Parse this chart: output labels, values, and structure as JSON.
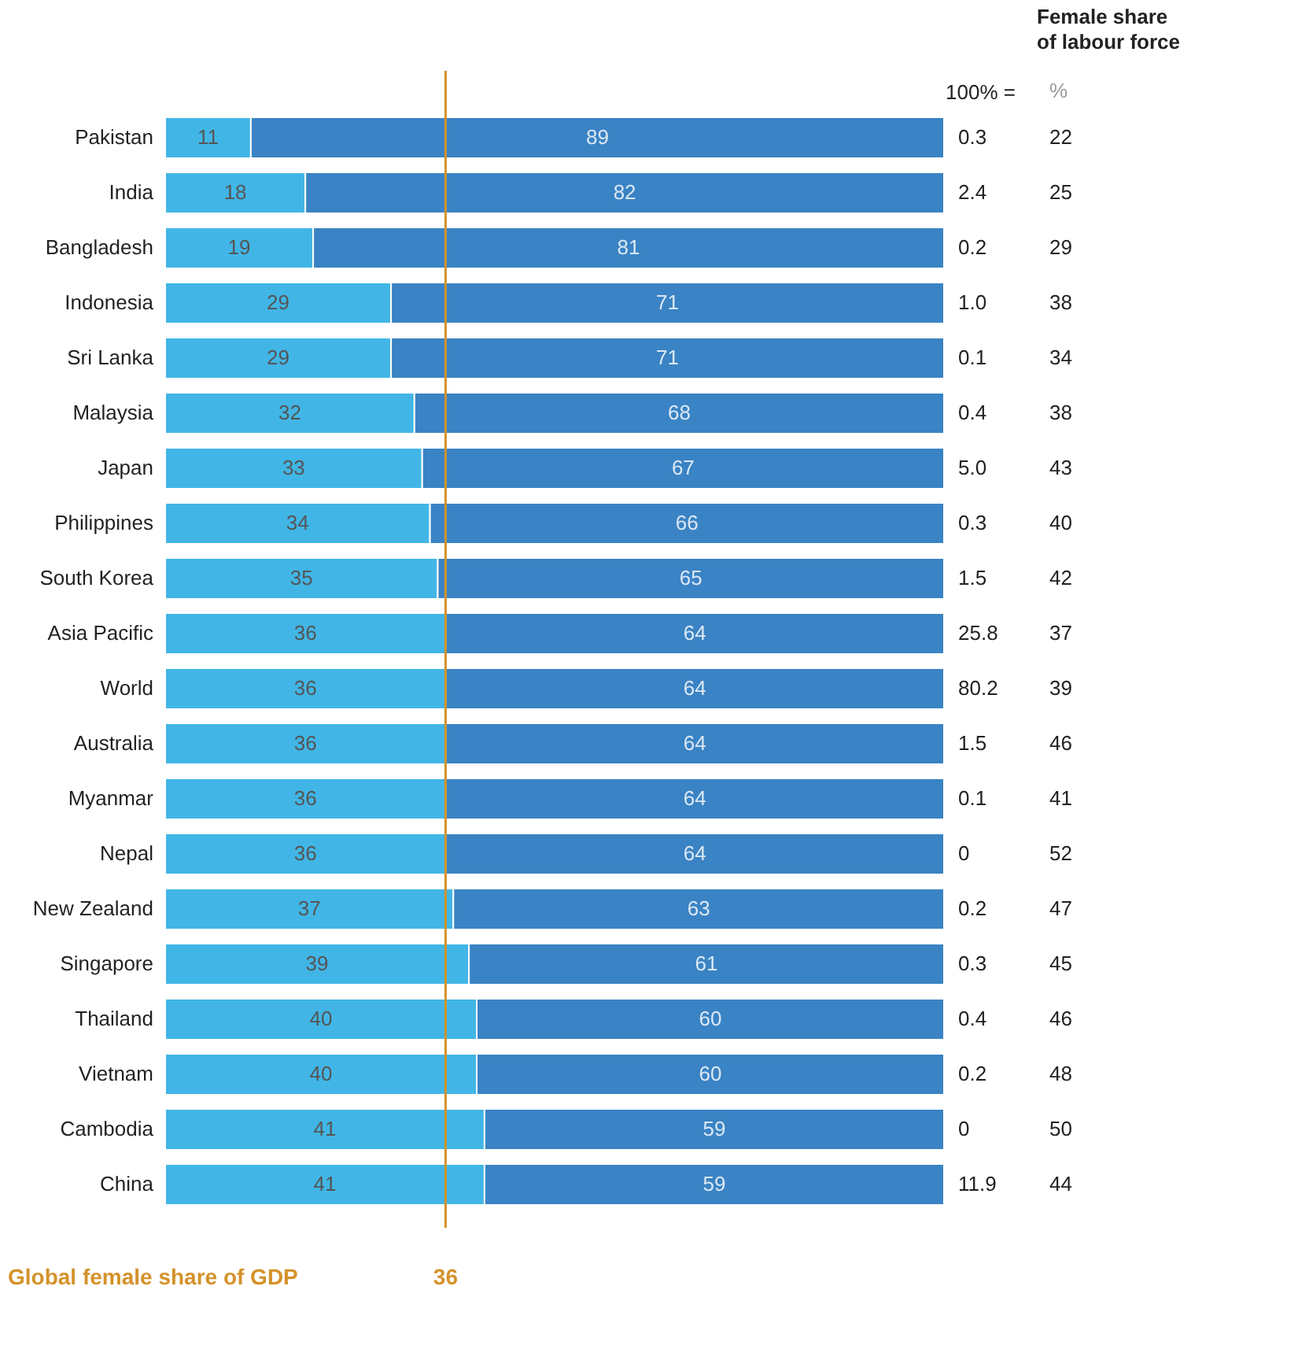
{
  "chart_data": [
    {
      "type": "bar",
      "orientation": "horizontal",
      "stacked": true,
      "data_labels": true,
      "grid": false,
      "tick_labels": "y",
      "categories": [
        "Pakistan",
        "India",
        "Bangladesh",
        "Indonesia",
        "Sri Lanka",
        "Malaysia",
        "Japan",
        "Philippines",
        "South Korea",
        "Asia Pacific",
        "World",
        "Australia",
        "Myanmar",
        "Nepal",
        "New Zealand",
        "Singapore",
        "Thailand",
        "Vietnam",
        "Cambodia",
        "China"
      ],
      "series": [
        {
          "color": "#41b6e6",
          "values": [
            11,
            18,
            19,
            29,
            29,
            32,
            33,
            34,
            35,
            36,
            36,
            36,
            36,
            36,
            37,
            39,
            40,
            40,
            41,
            41
          ]
        },
        {
          "color": "#3a83c4",
          "values": [
            89,
            82,
            81,
            71,
            71,
            68,
            67,
            66,
            65,
            64,
            64,
            64,
            64,
            64,
            63,
            61,
            60,
            60,
            59,
            59
          ]
        }
      ],
      "xlim": [
        0,
        100
      ],
      "ref_lines": [
        {
          "axis": "x",
          "value": 36,
          "label": "36",
          "color": "#d4922a"
        }
      ],
      "annotations": [
        "Global female share of GDP"
      ]
    },
    {
      "type": "other",
      "title": "100% =",
      "value_labels": [
        "0.3",
        "2.4",
        "0.2",
        "1.0",
        "0.1",
        "0.4",
        "5.0",
        "0.3",
        "1.5",
        "25.8",
        "80.2",
        "1.5",
        "0.1",
        "0",
        "0.2",
        "0.3",
        "0.4",
        "0.2",
        "0",
        "11.9"
      ]
    },
    {
      "type": "other",
      "title": "Female share of labour force",
      "subtitle": "%",
      "value_labels": [
        "22",
        "25",
        "29",
        "38",
        "34",
        "38",
        "43",
        "40",
        "42",
        "37",
        "39",
        "46",
        "41",
        "52",
        "47",
        "45",
        "46",
        "48",
        "50",
        "44"
      ]
    }
  ]
}
